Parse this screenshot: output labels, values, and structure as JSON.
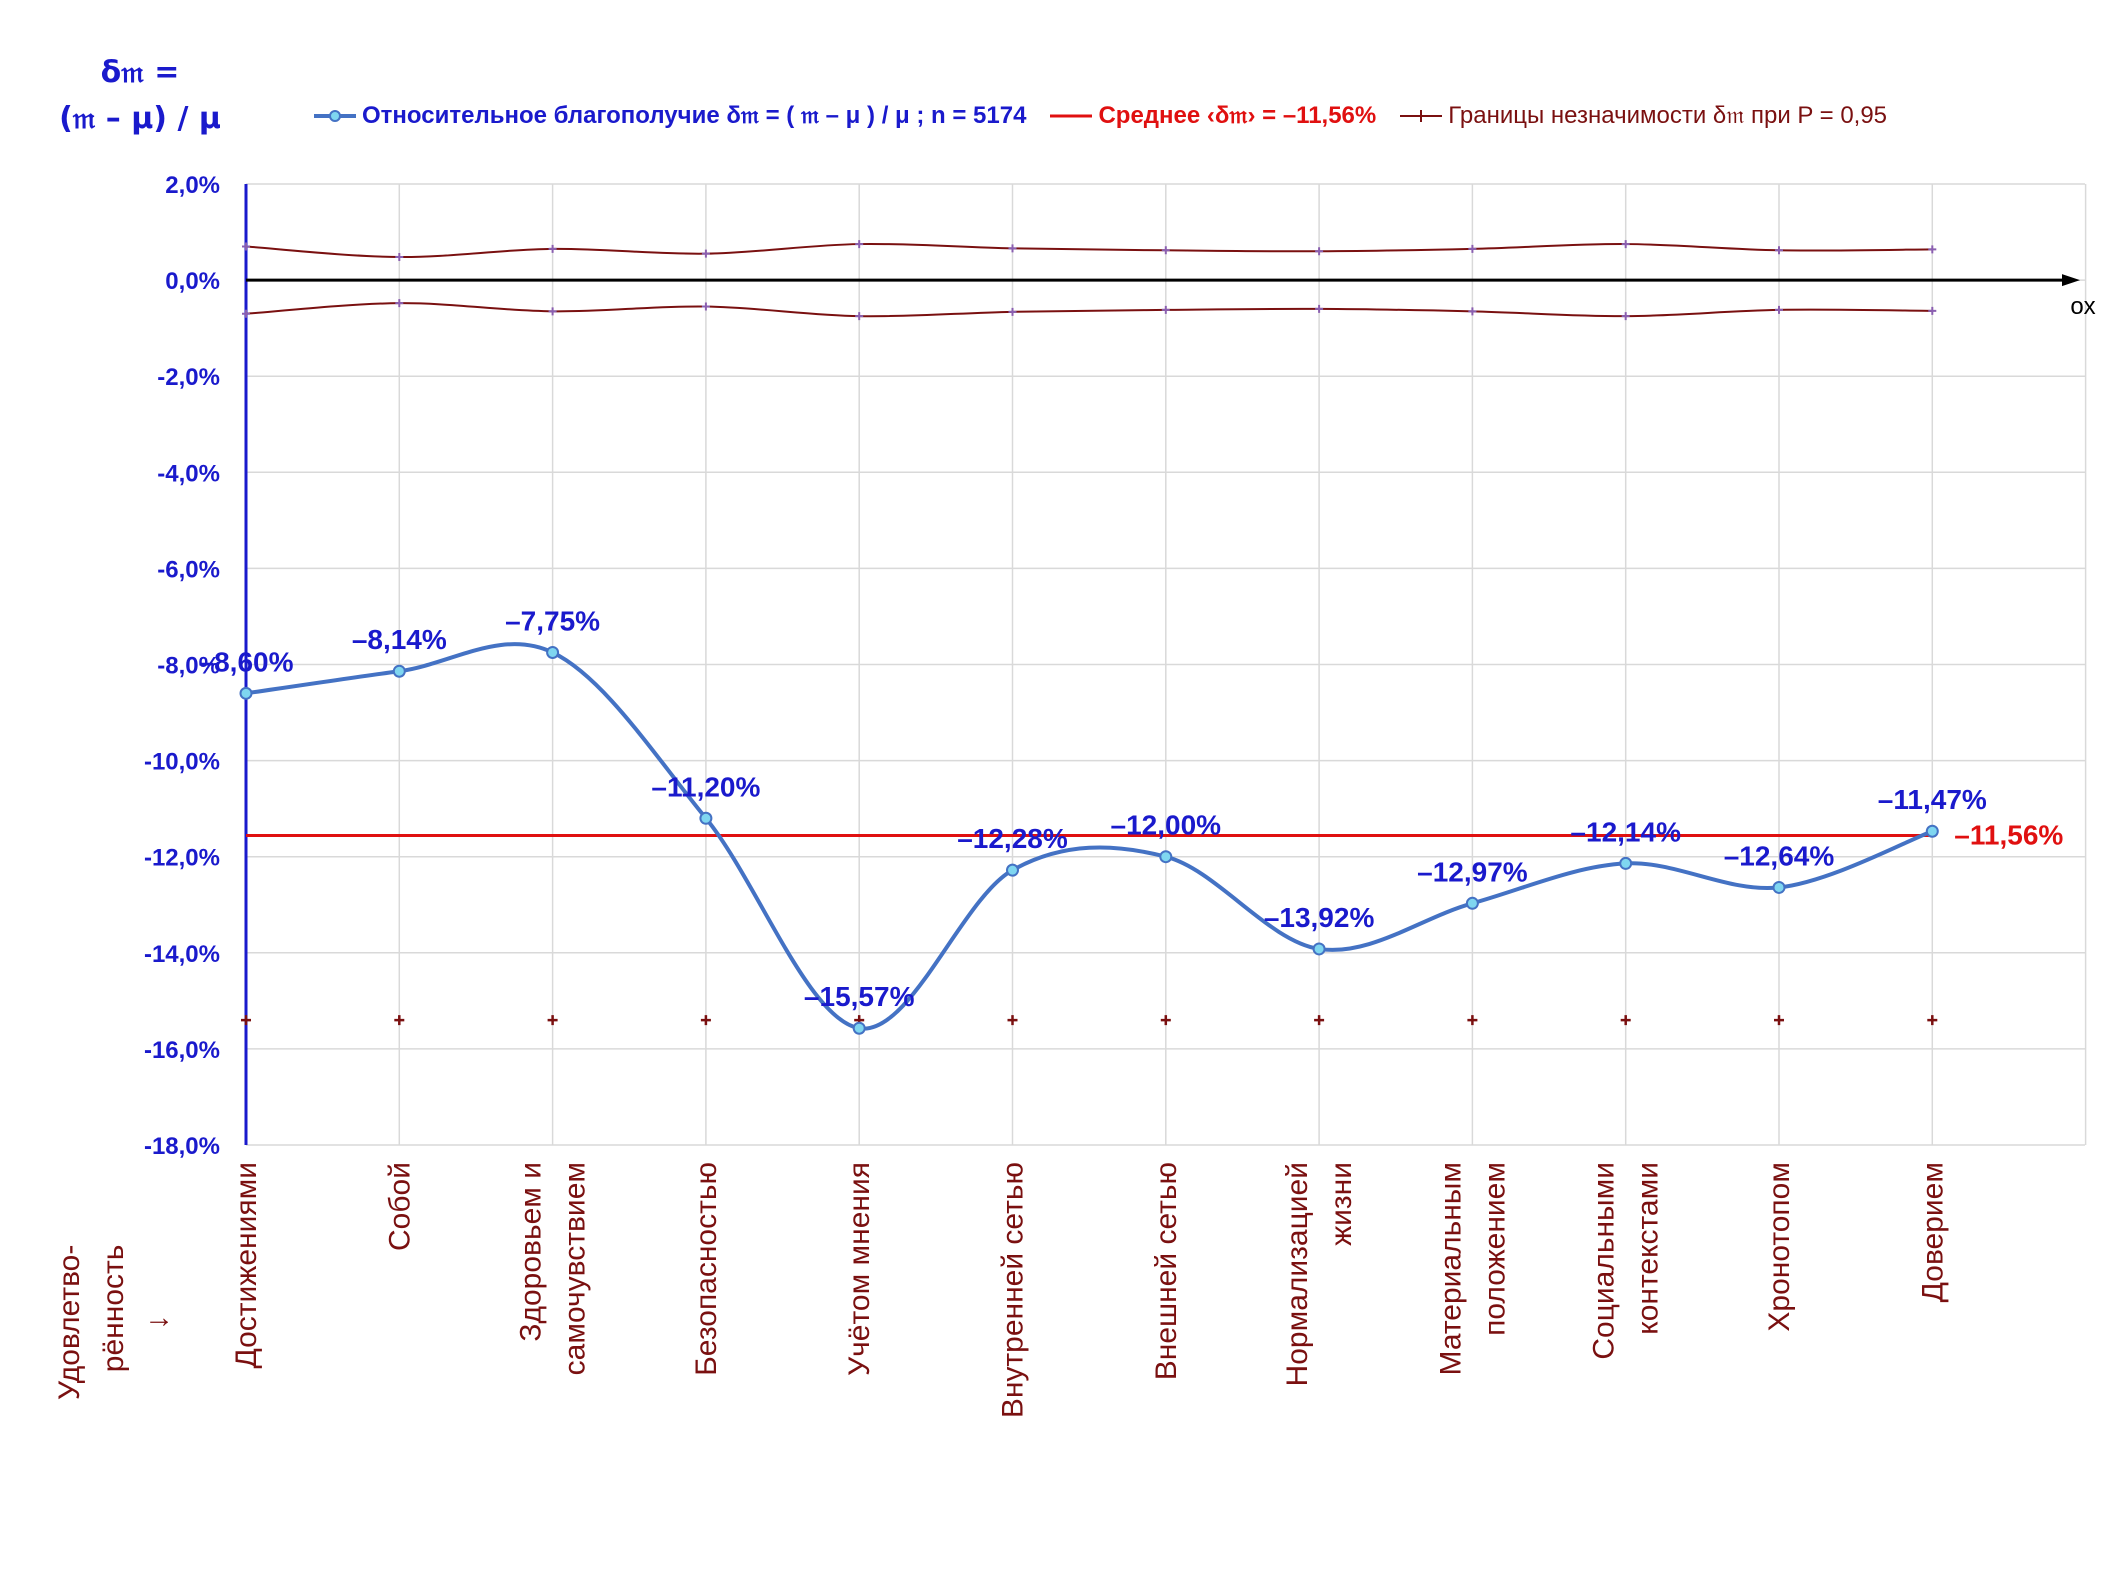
{
  "y_axis_title": {
    "line1": "δ𝔪 =",
    "line2": "(𝔪 – μ) / μ"
  },
  "x_axis_end_label": "ox",
  "row_title": {
    "line1": "Удовлетво-",
    "line2": "рённость",
    "line3": "↓"
  },
  "legend": {
    "main": "Относительное благополучие δ𝔪 = ( 𝔪 – μ ) / μ ; n = 5174",
    "mean": "Среднее ‹δ𝔪› = –11,56%",
    "bounds": "Границы незначимости δ𝔪 при P = 0,95"
  },
  "colors": {
    "main_line": "#4472c4",
    "marker_fill": "#7fd6f0",
    "data_labels": "#1a1acc",
    "mean_line": "#e01010",
    "bounds_line": "#7a1010",
    "category_labels": "#7a1010",
    "grid": "#d9d9d9"
  },
  "chart_data": {
    "type": "line",
    "categories": [
      [
        "Достижениями"
      ],
      [
        "Собой"
      ],
      [
        "Здоровьем и",
        "самочувствием"
      ],
      [
        "Безопасностью"
      ],
      [
        "Учётом мнения"
      ],
      [
        "Внутренней сетью"
      ],
      [
        "Внешней сетью"
      ],
      [
        "Нормализацией",
        "жизни"
      ],
      [
        "Материальным",
        "положением"
      ],
      [
        "Социальными",
        "контекстами"
      ],
      [
        "Хронотопом"
      ],
      [
        "Доверием"
      ]
    ],
    "series": [
      {
        "name": "Относительное благополучие δ𝔪 = ( 𝔪 – μ ) / μ ; n = 5174",
        "values": [
          -8.6,
          -8.14,
          -7.75,
          -11.2,
          -15.57,
          -12.28,
          -12.0,
          -13.92,
          -12.97,
          -12.14,
          -12.64,
          -11.47
        ],
        "labels": [
          "–8,60%",
          "–8,14%",
          "–7,75%",
          "–11,20%",
          "–15,57%",
          "–12,28%",
          "–12,00%",
          "–13,92%",
          "–12,97%",
          "–12,14%",
          "–12,64%",
          "–11,47%"
        ]
      },
      {
        "name": "Границы незначимости δ𝔪 при P = 0,95",
        "upper": [
          0.7,
          0.48,
          0.65,
          0.55,
          0.75,
          0.66,
          0.62,
          0.6,
          0.65,
          0.75,
          0.62,
          0.64
        ],
        "lower": [
          -0.7,
          -0.48,
          -0.65,
          -0.55,
          -0.75,
          -0.66,
          -0.62,
          -0.6,
          -0.65,
          -0.75,
          -0.62,
          -0.64
        ]
      }
    ],
    "extra_markers": {
      "value": -15.4
    },
    "mean": {
      "value": -11.56,
      "label": "–11,56%"
    },
    "ylim": [
      -18,
      2
    ],
    "yticks": [
      2,
      0,
      -2,
      -4,
      -6,
      -8,
      -10,
      -12,
      -14,
      -16,
      -18
    ],
    "ytick_labels": [
      "2,0%",
      "0,0%",
      "-2,0%",
      "-4,0%",
      "-6,0%",
      "-8,0%",
      "-10,0%",
      "-12,0%",
      "-14,0%",
      "-16,0%",
      "-18,0%"
    ],
    "grid": true,
    "legend_position": "top"
  }
}
